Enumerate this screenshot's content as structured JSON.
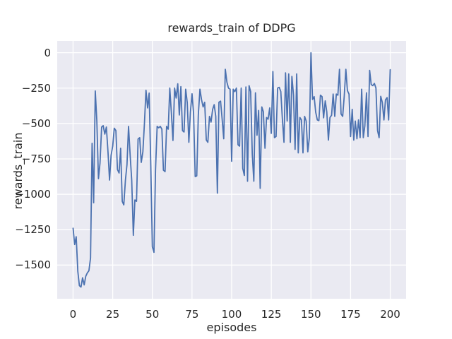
{
  "style": {
    "line_color": "#4c72b0",
    "plot_bg": "#eaeaf2",
    "grid_color": "#ffffff",
    "text_color": "#262626",
    "figure_bg": "#ffffff"
  },
  "chart_data": {
    "type": "line",
    "title": "rewards_train of DDPG",
    "xlabel": "episodes",
    "ylabel": "rewards_train",
    "x_ticks": [
      0,
      25,
      50,
      75,
      100,
      125,
      150,
      175,
      200
    ],
    "y_ticks": [
      0,
      -250,
      -500,
      -750,
      -1000,
      -1250,
      -1500
    ],
    "xlim": [
      -10,
      210
    ],
    "ylim": [
      -1738,
      83
    ],
    "grid": true,
    "legend": null,
    "x": [
      0,
      1,
      2,
      3,
      4,
      5,
      6,
      7,
      8,
      9,
      10,
      11,
      12,
      13,
      14,
      15,
      16,
      17,
      18,
      19,
      20,
      21,
      22,
      23,
      24,
      25,
      26,
      27,
      28,
      29,
      30,
      31,
      32,
      33,
      34,
      35,
      36,
      37,
      38,
      39,
      40,
      41,
      42,
      43,
      44,
      45,
      46,
      47,
      48,
      49,
      50,
      51,
      52,
      53,
      54,
      55,
      56,
      57,
      58,
      59,
      60,
      61,
      62,
      63,
      64,
      65,
      66,
      67,
      68,
      69,
      70,
      71,
      72,
      73,
      74,
      75,
      76,
      77,
      78,
      79,
      80,
      81,
      82,
      83,
      84,
      85,
      86,
      87,
      88,
      89,
      90,
      91,
      92,
      93,
      94,
      95,
      96,
      97,
      98,
      99,
      100,
      101,
      102,
      103,
      104,
      105,
      106,
      107,
      108,
      109,
      110,
      111,
      112,
      113,
      114,
      115,
      116,
      117,
      118,
      119,
      120,
      121,
      122,
      123,
      124,
      125,
      126,
      127,
      128,
      129,
      130,
      131,
      132,
      133,
      134,
      135,
      136,
      137,
      138,
      139,
      140,
      141,
      142,
      143,
      144,
      145,
      146,
      147,
      148,
      149,
      150,
      151,
      152,
      153,
      154,
      155,
      156,
      157,
      158,
      159,
      160,
      161,
      162,
      163,
      164,
      165,
      166,
      167,
      168,
      169,
      170,
      171,
      172,
      173,
      174,
      175,
      176,
      177,
      178,
      179,
      180,
      181,
      182,
      183,
      184,
      185,
      186,
      187,
      188,
      189,
      190,
      191,
      192,
      193,
      194,
      195,
      196,
      197,
      198,
      199,
      200
    ],
    "y": [
      -1240,
      -1355,
      -1300,
      -1545,
      -1645,
      -1655,
      -1590,
      -1640,
      -1580,
      -1555,
      -1540,
      -1450,
      -640,
      -1060,
      -270,
      -480,
      -890,
      -780,
      -525,
      -515,
      -575,
      -525,
      -700,
      -900,
      -725,
      -660,
      -533,
      -550,
      -825,
      -850,
      -675,
      -1050,
      -1075,
      -900,
      -790,
      -520,
      -725,
      -900,
      -1290,
      -1040,
      -1050,
      -610,
      -600,
      -775,
      -700,
      -500,
      -265,
      -390,
      -285,
      -800,
      -1370,
      -1410,
      -830,
      -520,
      -530,
      -520,
      -540,
      -830,
      -840,
      -520,
      -540,
      -250,
      -430,
      -620,
      -250,
      -320,
      -220,
      -440,
      -240,
      -550,
      -560,
      -258,
      -350,
      -633,
      -420,
      -290,
      -430,
      -875,
      -870,
      -440,
      -258,
      -330,
      -383,
      -350,
      -617,
      -633,
      -450,
      -490,
      -400,
      -367,
      -450,
      -992,
      -350,
      -342,
      -467,
      -608,
      -117,
      -208,
      -250,
      -258,
      -767,
      -258,
      -275,
      -250,
      -650,
      -660,
      -250,
      -817,
      -867,
      -242,
      -908,
      -233,
      -275,
      -717,
      -908,
      -283,
      -583,
      -408,
      -958,
      -383,
      -417,
      -675,
      -458,
      -470,
      -390,
      -570,
      -133,
      -600,
      -592,
      -250,
      -245,
      -275,
      -475,
      -633,
      -142,
      -483,
      -150,
      -633,
      -167,
      -300,
      -683,
      -150,
      -708,
      -458,
      -475,
      -708,
      -450,
      -483,
      -700,
      -600,
      0,
      -330,
      -310,
      -420,
      -475,
      -480,
      -300,
      -310,
      -460,
      -340,
      -417,
      -617,
      -458,
      -442,
      -292,
      -450,
      -292,
      -300,
      -117,
      -433,
      -450,
      -308,
      -117,
      -267,
      -292,
      -592,
      -400,
      -617,
      -483,
      -608,
      -475,
      -600,
      -258,
      -600,
      -517,
      -283,
      -592,
      -125,
      -225,
      -233,
      -217,
      -250,
      -550,
      -600,
      -308,
      -350,
      -475,
      -333,
      -317,
      -475,
      -120
    ]
  }
}
